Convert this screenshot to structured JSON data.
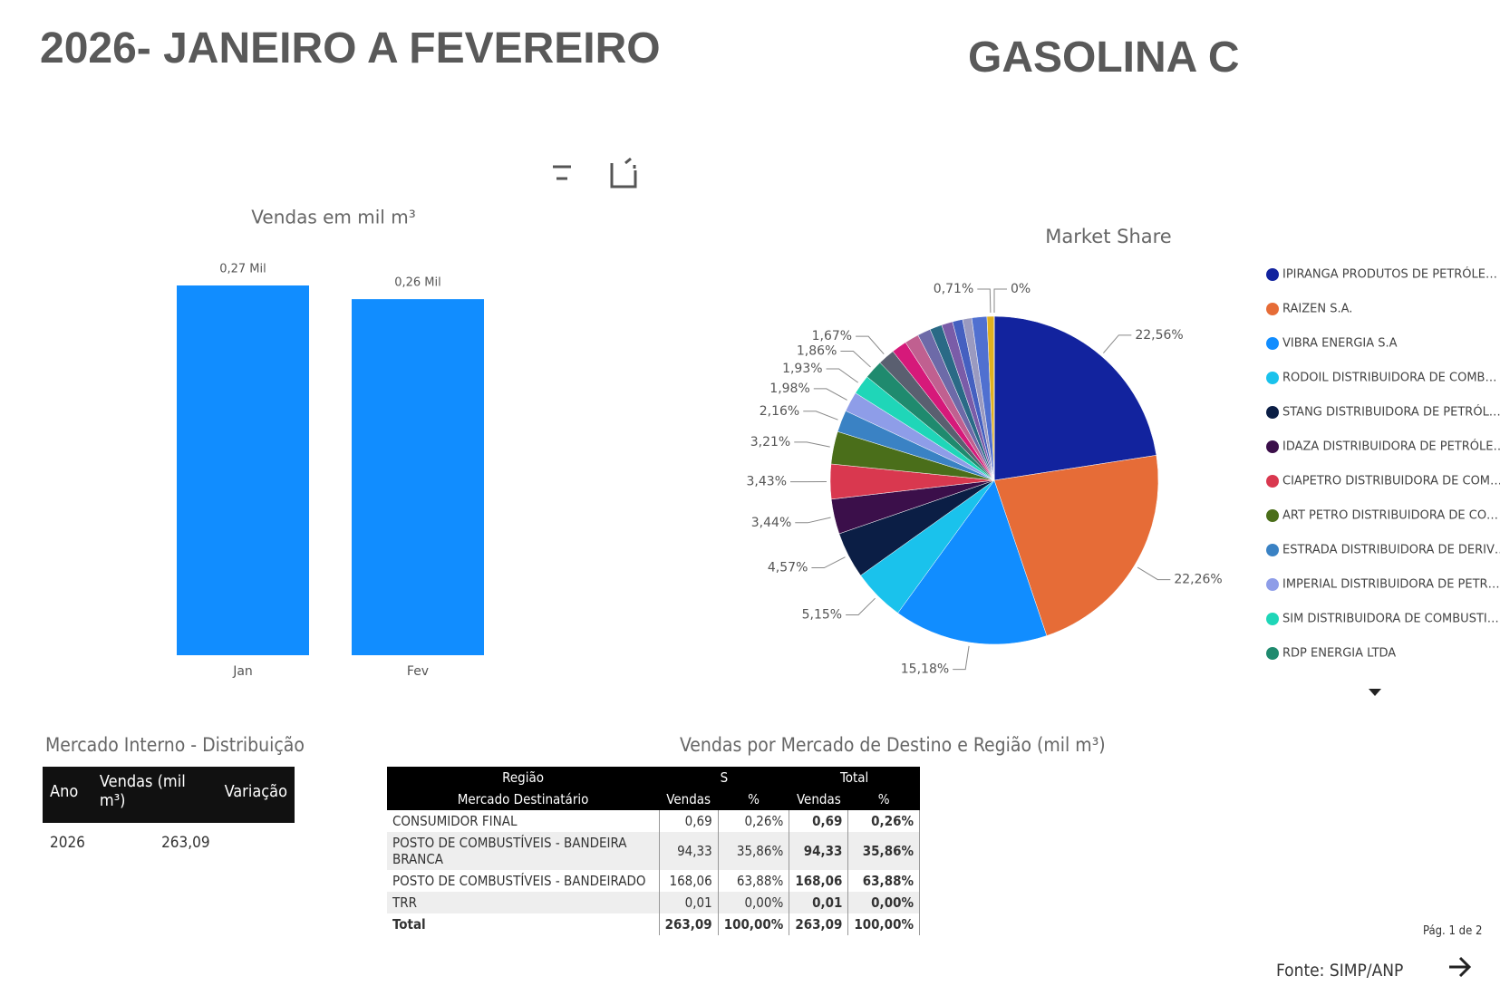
{
  "header": {
    "title": "2026- JANEIRO A FEVEREIRO",
    "product": "GASOLINA C"
  },
  "chart_data": [
    {
      "type": "bar",
      "title": "Vendas  em mil m³",
      "categories": [
        "Jan",
        "Fev"
      ],
      "values": [
        0.27,
        0.26
      ],
      "value_labels": [
        "0,27 Mil",
        "0,26 Mil"
      ],
      "color": "#118dff"
    },
    {
      "type": "pie",
      "title": "Market Share",
      "categories": [
        "IPIRANGA PRODUTOS DE PETRÓLE…",
        "RAIZEN S.A.",
        "VIBRA ENERGIA S.A",
        "RODOIL DISTRIBUIDORA DE COMB…",
        "STANG DISTRIBUIDORA DE PETRÓL…",
        "IDAZA DISTRIBUIDORA DE PETRÓLE…",
        "CIAPETRO DISTRIBUIDORA DE COM…",
        "ART PETRO DISTRIBUIDORA DE CO…",
        "ESTRADA DISTRIBUIDORA DE DERIV…",
        "IMPERIAL DISTRIBUIDORA DE PETR…",
        "SIM DISTRIBUIDORA DE COMBUSTI…",
        "RDP ENERGIA LTDA",
        null,
        null,
        null,
        null,
        null,
        null,
        null,
        null,
        null,
        null,
        null
      ],
      "values": [
        22.56,
        22.26,
        15.18,
        5.15,
        4.57,
        3.44,
        3.43,
        3.21,
        2.16,
        1.98,
        1.93,
        1.86,
        1.67,
        1.5,
        1.4,
        1.3,
        1.2,
        1.1,
        1.0,
        0.9,
        1.49,
        0.71,
        0
      ],
      "value_labels": [
        "22,56%",
        "22,26%",
        "15,18%",
        "5,15%",
        "4,57%",
        "3,44%",
        "3,43%",
        "3,21%",
        "2,16%",
        "1,98%",
        "1,93%",
        "1,86%",
        "1,67%",
        null,
        null,
        null,
        null,
        null,
        null,
        null,
        null,
        "0,71%",
        "0%"
      ],
      "colors": [
        "#12239e",
        "#e66c37",
        "#118dff",
        "#1ac2ec",
        "#0b1e45",
        "#3b0f4a",
        "#d9384f",
        "#4a6e1a",
        "#3a82c4",
        "#8e9de8",
        "#1fd6b8",
        "#1f8a6e",
        "#5a5f70",
        "#d6197a",
        "#c06090",
        "#6d6aa8",
        "#2a6a86",
        "#7a5ca8",
        "#4560c0",
        "#9a9ac0",
        "#5070d0",
        "#e0b020",
        "#40a040"
      ]
    }
  ],
  "table_interno": {
    "title": "Mercado Interno - Distribuição",
    "columns": [
      "Ano",
      "Vendas (mil m³)",
      "Variação"
    ],
    "rows": [
      [
        "2026",
        "263,09"
      ]
    ]
  },
  "table_regiao": {
    "title": "Vendas por Mercado de Destino e Região (mil m³)",
    "group_header": [
      "Região",
      "S",
      "Total"
    ],
    "columns": [
      "Mercado Destinatário",
      "Vendas",
      "%",
      "Vendas",
      "%"
    ],
    "rows": [
      [
        "CONSUMIDOR FINAL",
        "0,69",
        "0,26%",
        "0,69",
        "0,26%"
      ],
      [
        "POSTO DE COMBUSTÍVEIS - BANDEIRA BRANCA",
        "94,33",
        "35,86%",
        "94,33",
        "35,86%"
      ],
      [
        "POSTO DE COMBUSTÍVEIS - BANDEIRADO",
        "168,06",
        "63,88%",
        "168,06",
        "63,88%"
      ],
      [
        "TRR",
        "0,01",
        "0,00%",
        "0,01",
        "0,00%"
      ],
      [
        "Total",
        "263,09",
        "100,00%",
        "263,09",
        "100,00%"
      ]
    ]
  },
  "footer": {
    "page": "Pág. 1 de 2",
    "source": "Fonte: SIMP/ANP"
  }
}
